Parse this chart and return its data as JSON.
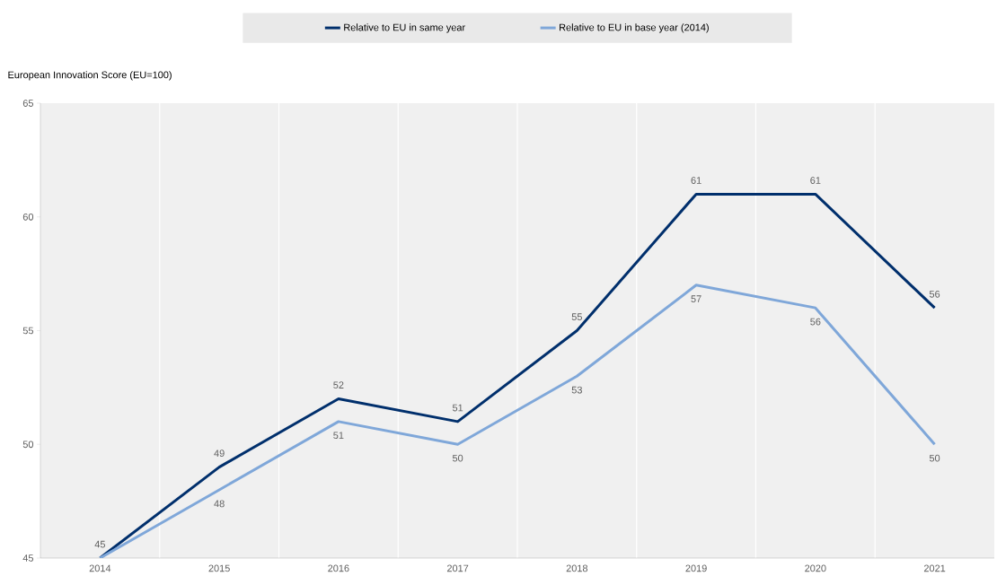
{
  "chart_data": {
    "type": "line",
    "ylabel": "European Innovation Score (EU=100)",
    "categories": [
      "2014",
      "2015",
      "2016",
      "2017",
      "2018",
      "2019",
      "2020",
      "2021"
    ],
    "series": [
      {
        "name": "Relative to EU in same year",
        "color": "#002f6c",
        "values": [
          45,
          49,
          52,
          51,
          55,
          61,
          61,
          56
        ],
        "value_labels": [
          "45",
          "49",
          "52",
          "51",
          "55",
          "61",
          "61",
          "56"
        ]
      },
      {
        "name": "Relative to EU in base year (2014)",
        "color": "#7fa7d9",
        "values": [
          45,
          48,
          51,
          50,
          53,
          57,
          56,
          50
        ],
        "value_labels": [
          null,
          "48",
          "51",
          "50",
          "53",
          "57",
          "56",
          "50"
        ]
      }
    ],
    "ylim": [
      45,
      65
    ],
    "yticks": [
      45,
      50,
      55,
      60,
      65
    ],
    "grid": "x",
    "legend": "top",
    "marker": "none",
    "line_style": "solid"
  }
}
